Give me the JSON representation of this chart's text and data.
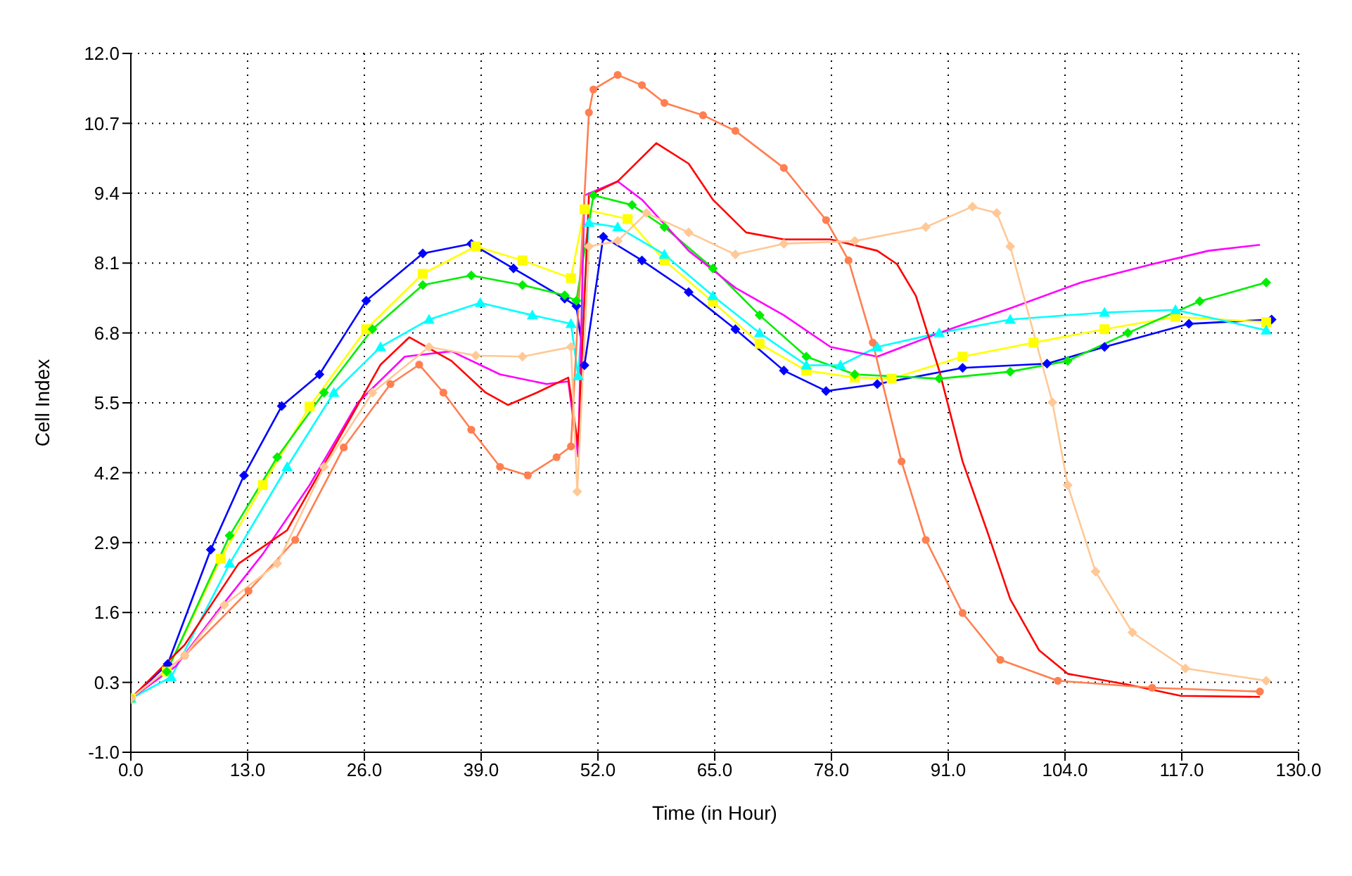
{
  "chart_data": {
    "type": "line",
    "xlabel": "Time (in Hour)",
    "ylabel": "Cell Index",
    "xlim": [
      0,
      130
    ],
    "ylim": [
      -1,
      12
    ],
    "xticks": [
      {
        "value": 0,
        "label": "0.0"
      },
      {
        "value": 13,
        "label": "13.0"
      },
      {
        "value": 26,
        "label": "26.0"
      },
      {
        "value": 39,
        "label": "39.0"
      },
      {
        "value": 52,
        "label": "52.0"
      },
      {
        "value": 65,
        "label": "65.0"
      },
      {
        "value": 78,
        "label": "78.0"
      },
      {
        "value": 91,
        "label": "91.0"
      },
      {
        "value": 104,
        "label": "104.0"
      },
      {
        "value": 117,
        "label": "117.0"
      },
      {
        "value": 130,
        "label": "130.0"
      }
    ],
    "yticks": [
      {
        "value": -1,
        "label": "-1.0"
      },
      {
        "value": 0.3,
        "label": "0.3"
      },
      {
        "value": 1.6,
        "label": "1.6"
      },
      {
        "value": 2.9,
        "label": "2.9"
      },
      {
        "value": 4.2,
        "label": "4.2"
      },
      {
        "value": 5.5,
        "label": "5.5"
      },
      {
        "value": 6.8,
        "label": "6.8"
      },
      {
        "value": 8.1,
        "label": "8.1"
      },
      {
        "value": 9.4,
        "label": "9.4"
      },
      {
        "value": 10.7,
        "label": "10.7"
      },
      {
        "value": 12,
        "label": "12.0"
      }
    ],
    "grid": true,
    "line_style": "solid",
    "series": [
      {
        "color": "#0000ff",
        "marker": "diamond",
        "x": [
          0,
          4.1,
          8.9,
          12.6,
          16.8,
          21,
          26.2,
          32.5,
          37.9,
          42.6,
          48.3,
          49.6,
          50.5,
          52.6,
          56.9,
          62.1,
          67.3,
          72.7,
          77.4,
          83.1,
          92.6,
          102,
          108.4,
          117.8,
          127
        ],
        "values": [
          0,
          0.64,
          2.77,
          4.15,
          5.44,
          6.03,
          7.4,
          8.28,
          8.46,
          8,
          7.44,
          7.3,
          6.2,
          8.59,
          8.15,
          7.56,
          6.87,
          6.1,
          5.72,
          5.85,
          6.15,
          6.23,
          6.54,
          6.97,
          7.05
        ]
      },
      {
        "color": "#ffff00",
        "marker": "square",
        "x": [
          0,
          4,
          10,
          14.7,
          19.9,
          26.2,
          32.5,
          38.4,
          43.6,
          49,
          50.5,
          55.3,
          59.4,
          64.8,
          70,
          75.2,
          80.6,
          84.7,
          92.6,
          100.5,
          108.4,
          116.3,
          126.4
        ],
        "values": [
          0,
          0.5,
          2.6,
          3.97,
          5.43,
          6.87,
          7.9,
          8.41,
          8.15,
          7.82,
          9.1,
          8.92,
          8.15,
          7.38,
          6.6,
          6.1,
          5.97,
          5.95,
          6.36,
          6.62,
          6.87,
          7.1,
          7
        ]
      },
      {
        "color": "#00ee00",
        "marker": "diamond",
        "x": [
          0,
          4,
          11,
          16.3,
          21.5,
          26.9,
          32.5,
          37.9,
          43.6,
          48.3,
          49.6,
          51.5,
          55.8,
          59.4,
          64.8,
          70,
          75.2,
          80.6,
          90,
          97.9,
          104.3,
          111,
          119,
          126.4
        ],
        "values": [
          0,
          0.5,
          3.03,
          4.49,
          5.69,
          6.87,
          7.69,
          7.87,
          7.69,
          7.5,
          7.4,
          9.36,
          9.18,
          8.77,
          8,
          7.13,
          6.36,
          6.03,
          5.95,
          6.08,
          6.28,
          6.8,
          7.39,
          7.74
        ]
      },
      {
        "color": "#00ffff",
        "marker": "triangle",
        "x": [
          0,
          4.5,
          11,
          17.4,
          22.6,
          27.8,
          33.2,
          38.9,
          44.7,
          49,
          49.8,
          51,
          54.2,
          59.4,
          64.8,
          70,
          75.2,
          79,
          83.1,
          90,
          97.9,
          108.4,
          116.3,
          126.4
        ],
        "values": [
          0,
          0.4,
          2.51,
          4.31,
          5.69,
          6.54,
          7.05,
          7.36,
          7.13,
          6.97,
          6,
          8.85,
          8.77,
          8.26,
          7.49,
          6.8,
          6.2,
          6.2,
          6.54,
          6.8,
          7.05,
          7.18,
          7.23,
          6.85
        ]
      },
      {
        "color": "#ff00ff",
        "marker": "none",
        "x": [
          0,
          5,
          9.5,
          14.7,
          19.9,
          25.3,
          30.5,
          35.7,
          41.1,
          46.3,
          48.7,
          49.8,
          50.5,
          54.2,
          56.9,
          62.1,
          67.3,
          72.7,
          77.9,
          83.1,
          90,
          97.9,
          105.8,
          113.7,
          120,
          125.7
        ],
        "values": [
          0,
          0.6,
          1.59,
          2.69,
          3.97,
          5.51,
          6.36,
          6.46,
          6.03,
          5.85,
          5.9,
          4.5,
          9.36,
          9.62,
          9.28,
          8.33,
          7.64,
          7.13,
          6.54,
          6.36,
          6.8,
          7.26,
          7.74,
          8.08,
          8.33,
          8.44
        ]
      },
      {
        "color": "#ff0000",
        "marker": "none",
        "x": [
          0,
          6,
          12,
          17.4,
          22.6,
          27.8,
          31,
          35.7,
          39.5,
          42,
          45.2,
          48.7,
          49.8,
          51,
          54.2,
          58.5,
          62.1,
          64.8,
          68.5,
          72.7,
          77.9,
          83.1,
          85.3,
          87.4,
          90,
          92.6,
          95.3,
          97.9,
          101.1,
          104.3,
          111,
          116.9,
          125.7
        ],
        "values": [
          0,
          1,
          2.51,
          3.13,
          4.67,
          6.21,
          6.72,
          6.28,
          5.69,
          5.46,
          5.69,
          5.97,
          4.7,
          9.36,
          9.62,
          10.33,
          9.95,
          9.28,
          8.67,
          8.54,
          8.54,
          8.33,
          8.08,
          7.49,
          6.1,
          4.41,
          3.13,
          1.85,
          0.9,
          0.46,
          0.26,
          0.05,
          0.03
        ]
      },
      {
        "color": "#ff7f50",
        "marker": "circle",
        "x": [
          0,
          6,
          13.1,
          18.3,
          23.7,
          28.9,
          32.1,
          34.8,
          37.9,
          41.1,
          44.2,
          47.4,
          49,
          51,
          51.5,
          54.2,
          56.9,
          59.4,
          63.7,
          67.3,
          72.7,
          77.4,
          79.9,
          82.6,
          85.8,
          88.5,
          92.6,
          96.8,
          103.2,
          113.7,
          125.7
        ],
        "values": [
          0,
          0.8,
          2,
          2.95,
          4.67,
          5.85,
          6.21,
          5.69,
          5,
          4.31,
          4.15,
          4.49,
          4.69,
          10.9,
          11.33,
          11.6,
          11.41,
          11.08,
          10.85,
          10.56,
          9.87,
          8.9,
          8.15,
          6.62,
          4.41,
          2.95,
          1.59,
          0.72,
          0.33,
          0.2,
          0.13
        ]
      },
      {
        "color": "#ffc896",
        "marker": "diamond",
        "x": [
          0,
          6,
          10.4,
          16.3,
          21.5,
          26.9,
          33.2,
          38.4,
          43.6,
          49,
          49.7,
          51,
          54.2,
          57.4,
          62.1,
          67.3,
          72.7,
          80.6,
          88.5,
          93.7,
          96.4,
          97.9,
          102.6,
          104.3,
          107.4,
          111.5,
          117.4,
          126.4
        ],
        "values": [
          0,
          0.8,
          1.74,
          2.51,
          4.31,
          5.69,
          6.54,
          6.38,
          6.36,
          6.54,
          3.85,
          8.41,
          8.51,
          9.03,
          8.67,
          8.26,
          8.46,
          8.51,
          8.77,
          9.15,
          9.03,
          8.41,
          5.51,
          3.97,
          2.36,
          1.23,
          0.56,
          0.33
        ]
      }
    ]
  }
}
